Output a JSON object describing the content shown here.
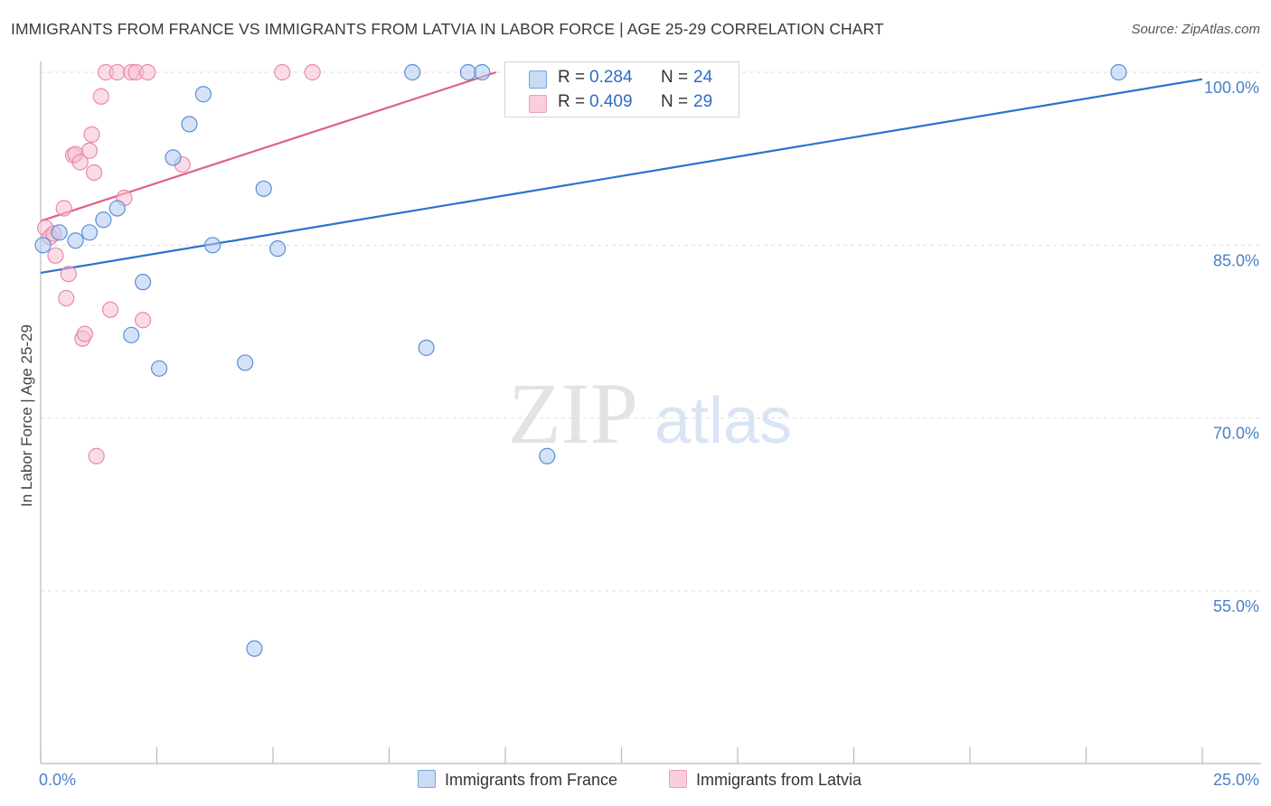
{
  "header": {
    "title": "IMMIGRANTS FROM FRANCE VS IMMIGRANTS FROM LATVIA IN LABOR FORCE | AGE 25-29 CORRELATION CHART",
    "source": "Source: ZipAtlas.com"
  },
  "watermark": {
    "zip": "ZIP",
    "atlas": "atlas"
  },
  "legend": {
    "france": {
      "r_label": "R =",
      "r_value": "0.284",
      "n_label": "N =",
      "n_value": "24"
    },
    "latvia": {
      "r_label": "R =",
      "r_value": "0.409",
      "n_label": "N =",
      "n_value": "29"
    }
  },
  "colors": {
    "france_fill": "#aecbf0",
    "france_stroke": "#5b8fd6",
    "france_line": "#2f6fd0",
    "latvia_fill": "#f7bfd0",
    "latvia_stroke": "#e98aa8",
    "latvia_line": "#e0608a",
    "axis_label": "#4a7fc8",
    "grid": "#dddddd"
  },
  "chart_data": {
    "type": "scatter",
    "title": "IMMIGRANTS FROM FRANCE VS IMMIGRANTS FROM LATVIA IN LABOR FORCE | AGE 25-29 CORRELATION CHART",
    "xlabel": "",
    "ylabel": "In Labor Force | Age 25-29",
    "xlim": [
      0.0,
      25.0
    ],
    "ylim": [
      40.0,
      102.0
    ],
    "x_tick_labels": [
      "0.0%",
      "25.0%"
    ],
    "y_ticks": [
      55.0,
      70.0,
      85.0,
      100.0
    ],
    "y_tick_labels": [
      "55.0%",
      "70.0%",
      "85.0%",
      "100.0%"
    ],
    "grid": "horizontal dashed",
    "legend_placement": "bottom",
    "series": [
      {
        "name": "Immigrants from France",
        "points": [
          [
            0.05,
            85.0
          ],
          [
            0.4,
            86.1
          ],
          [
            0.75,
            85.4
          ],
          [
            1.05,
            86.1
          ],
          [
            1.35,
            87.2
          ],
          [
            1.65,
            88.2
          ],
          [
            1.95,
            77.2
          ],
          [
            2.2,
            81.8
          ],
          [
            2.55,
            74.3
          ],
          [
            2.85,
            92.6
          ],
          [
            3.2,
            95.5
          ],
          [
            3.5,
            98.1
          ],
          [
            3.7,
            85.0
          ],
          [
            4.4,
            74.8
          ],
          [
            4.6,
            50.0
          ],
          [
            4.8,
            89.9
          ],
          [
            5.1,
            84.7
          ],
          [
            8.0,
            100.0
          ],
          [
            8.3,
            76.1
          ],
          [
            9.2,
            100.0
          ],
          [
            9.5,
            100.0
          ],
          [
            10.6,
            100.0
          ],
          [
            10.9,
            66.7
          ],
          [
            23.2,
            100.0
          ]
        ],
        "trend": {
          "x": [
            0.0,
            25.0
          ],
          "y": [
            82.6,
            99.4
          ]
        }
      },
      {
        "name": "Immigrants from Latvia",
        "points": [
          [
            0.1,
            86.5
          ],
          [
            0.2,
            85.7
          ],
          [
            0.28,
            86.0
          ],
          [
            0.32,
            84.1
          ],
          [
            0.5,
            88.2
          ],
          [
            0.55,
            80.4
          ],
          [
            0.6,
            82.5
          ],
          [
            0.7,
            92.8
          ],
          [
            0.75,
            92.9
          ],
          [
            0.85,
            92.2
          ],
          [
            0.9,
            76.9
          ],
          [
            0.95,
            77.3
          ],
          [
            1.05,
            93.2
          ],
          [
            1.1,
            94.6
          ],
          [
            1.15,
            91.3
          ],
          [
            1.2,
            66.7
          ],
          [
            1.3,
            97.9
          ],
          [
            1.4,
            100.0
          ],
          [
            1.5,
            79.4
          ],
          [
            1.65,
            100.0
          ],
          [
            1.8,
            89.1
          ],
          [
            1.95,
            100.0
          ],
          [
            2.05,
            100.0
          ],
          [
            2.2,
            78.5
          ],
          [
            2.3,
            100.0
          ],
          [
            3.05,
            92.0
          ],
          [
            5.2,
            100.0
          ],
          [
            5.85,
            100.0
          ],
          [
            14.8,
            100.0
          ]
        ],
        "trend": {
          "x": [
            0.0,
            9.8
          ],
          "y": [
            87.1,
            100.0
          ]
        }
      }
    ]
  },
  "bottom_legend": {
    "france_label": "Immigrants from France",
    "latvia_label": "Immigrants from Latvia"
  }
}
